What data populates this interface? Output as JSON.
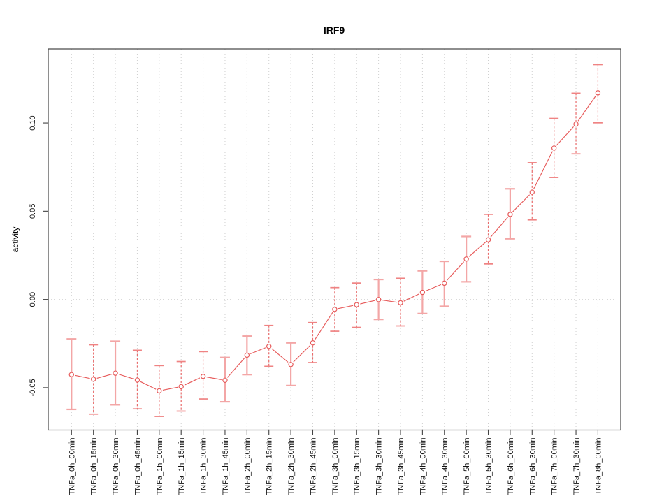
{
  "chart_data": {
    "type": "line",
    "title": "IRF9",
    "xlabel": "",
    "ylabel": "activity",
    "legend": null,
    "grid": {
      "vertical_dotted_per_category": true,
      "horizontal_dotted_zero_line": true
    },
    "ylim": [
      -0.074,
      0.142
    ],
    "yticks": [
      -0.05,
      0.0,
      0.05,
      0.1
    ],
    "ytick_labels": [
      "-0.05",
      "0.00",
      "0.05",
      "0.10"
    ],
    "x_tick_label_rotation_deg": -90,
    "categories": [
      "TNFa_0h_00min",
      "TNFa_0h_15min",
      "TNFa_0h_30min",
      "TNFa_0h_45min",
      "TNFa_1h_00min",
      "TNFa_1h_15min",
      "TNFa_1h_30min",
      "TNFa_1h_45min",
      "TNFa_2h_00min",
      "TNFa_2h_15min",
      "TNFa_2h_30min",
      "TNFa_2h_45min",
      "TNFa_3h_00min",
      "TNFa_3h_15min",
      "TNFa_3h_30min",
      "TNFa_3h_45min",
      "TNFa_4h_00min",
      "TNFa_4h_30min",
      "TNFa_5h_00min",
      "TNFa_5h_30min",
      "TNFa_6h_00min",
      "TNFa_6h_30min",
      "TNFa_7h_00min",
      "TNFa_7h_30min",
      "TNFa_8h_00min"
    ],
    "series": [
      {
        "name": "activity",
        "marker": "open-circle",
        "values": [
          -0.0426,
          -0.0452,
          -0.0418,
          -0.0457,
          -0.0518,
          -0.0494,
          -0.0436,
          -0.0458,
          -0.0316,
          -0.0266,
          -0.0369,
          -0.0246,
          -0.0056,
          -0.003,
          -0.0001,
          -0.0019,
          0.004,
          0.0092,
          0.0229,
          0.0338,
          0.0482,
          0.0608,
          0.0858,
          0.0994,
          0.1171
        ],
        "ci_low": [
          -0.0623,
          -0.065,
          -0.0597,
          -0.062,
          -0.0663,
          -0.0633,
          -0.0564,
          -0.058,
          -0.0426,
          -0.0379,
          -0.0488,
          -0.0358,
          -0.018,
          -0.0158,
          -0.0113,
          -0.015,
          -0.008,
          -0.0039,
          0.01,
          0.0201,
          0.0344,
          0.0451,
          0.0691,
          0.0825,
          0.1001
        ],
        "ci_high": [
          -0.0224,
          -0.0257,
          -0.0237,
          -0.0288,
          -0.0375,
          -0.0352,
          -0.0296,
          -0.0329,
          -0.0208,
          -0.0147,
          -0.0246,
          -0.0131,
          0.0067,
          0.0093,
          0.0113,
          0.012,
          0.0162,
          0.0216,
          0.0357,
          0.0482,
          0.0627,
          0.0775,
          0.1026,
          0.1169,
          0.1331
        ]
      }
    ],
    "error_bar_styles": [
      "pale",
      "dashed",
      "pale",
      "dashed",
      "dashed",
      "dashed",
      "dashed",
      "pale",
      "pale",
      "dashed",
      "pale",
      "dashed",
      "dashed",
      "dashed",
      "pale",
      "dashed",
      "pale",
      "pale",
      "pale",
      "dashed",
      "pale",
      "dashed",
      "dashed",
      "dashed",
      "dashed"
    ],
    "colors": {
      "background": "#ffffff",
      "line": "#e75b5b",
      "point": "#e75b5b",
      "error_bar_pale": "#f3a6a6",
      "error_bar_dashed": "#e96b6b",
      "error_bar_cap_dashed": "#ef8383",
      "grid": "#cfcfcf",
      "zero_line": "#d4d4d4",
      "axis": "#434343",
      "text": "#000000"
    }
  }
}
